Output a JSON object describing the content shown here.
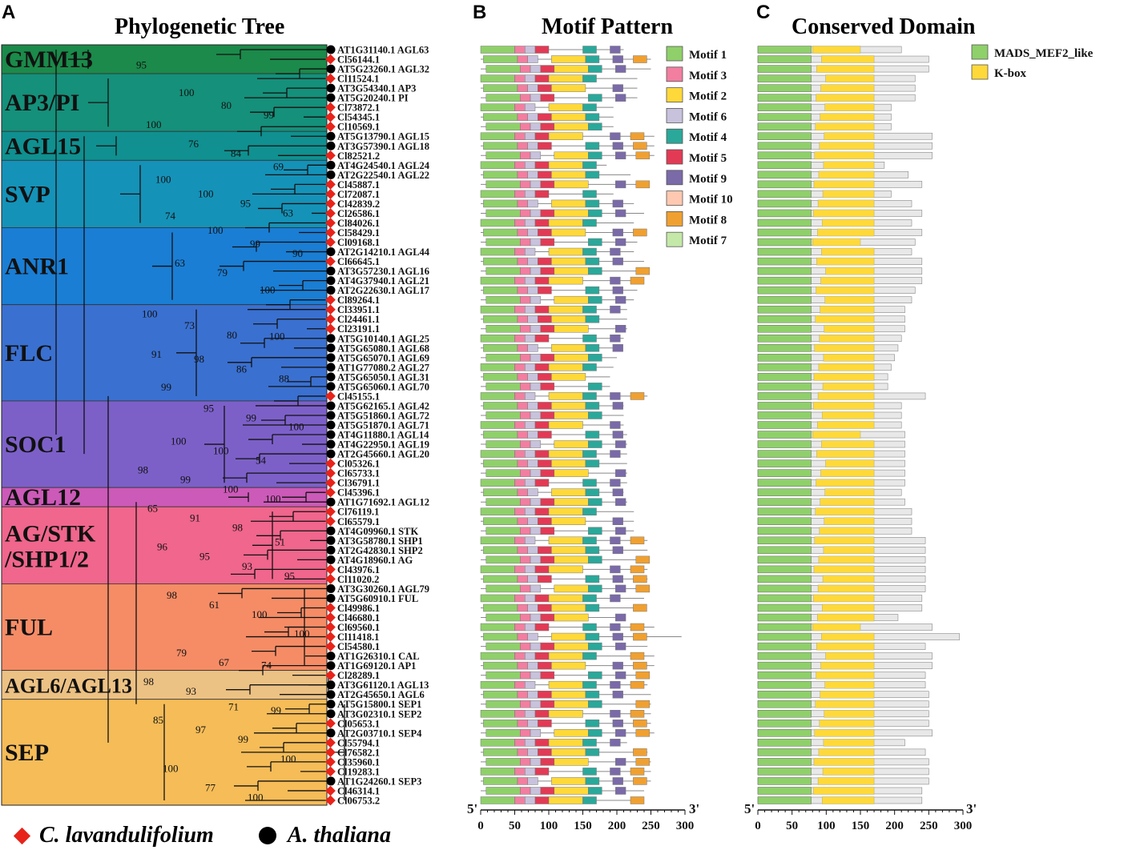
{
  "panels": {
    "a": {
      "letter": "A",
      "title": "Phylogenetic Tree"
    },
    "b": {
      "letter": "B",
      "title": "Motif Pattern"
    },
    "c": {
      "letter": "C",
      "title": "Conserved Domain"
    }
  },
  "colors": {
    "cl": "#e8231a",
    "at": "#000000",
    "motif1": "#8fd06a",
    "motif3": "#f27ea0",
    "motif2": "#ffd93a",
    "motif6": "#c8c2dc",
    "motif4": "#2aa89a",
    "motif5": "#e23a55",
    "motif9": "#7a6aa8",
    "motif10": "#ffc8b0",
    "motif8": "#f0a030",
    "motif7": "#c4e8a8",
    "mads": "#8fd06a",
    "kbox": "#ffd93a",
    "domain_bg": "#e8e8e8"
  },
  "legend_species": {
    "cl": "C. lavandulifolium",
    "at": "A. thaliana"
  },
  "clades": [
    {
      "name": "GMM13",
      "color": "#1b8a4a",
      "start": 0,
      "end": 3
    },
    {
      "name": "AP3/PI",
      "color": "#15907a",
      "start": 3,
      "end": 9
    },
    {
      "name": "AGL15",
      "color": "#109090",
      "start": 9,
      "end": 12
    },
    {
      "name": "SVP",
      "color": "#1592b8",
      "start": 12,
      "end": 19
    },
    {
      "name": "ANR1",
      "color": "#1a7ed4",
      "start": 19,
      "end": 27
    },
    {
      "name": "FLC",
      "color": "#3a70d0",
      "start": 27,
      "end": 37
    },
    {
      "name": "SOC1",
      "color": "#7c60c8",
      "start": 37,
      "end": 46
    },
    {
      "name": "AGL12",
      "color": "#cc5ab8",
      "start": 46,
      "end": 48
    },
    {
      "name": "AG/STK\n/SHP1/2",
      "color": "#f0668c",
      "start": 48,
      "end": 56
    },
    {
      "name": "FUL",
      "color": "#f58c66",
      "start": 56,
      "end": 65
    },
    {
      "name": "AGL6/AGL13",
      "color": "#ecc184",
      "start": 65,
      "end": 68
    },
    {
      "name": "SEP",
      "color": "#f5bc58",
      "start": 68,
      "end": 79
    }
  ],
  "genes": [
    {
      "id": "AT1G31140.1 AGL63",
      "sp": "at"
    },
    {
      "id": "Cl56144.1",
      "sp": "cl"
    },
    {
      "id": "AT5G23260.1 AGL32",
      "sp": "at"
    },
    {
      "id": "Cl11524.1",
      "sp": "cl"
    },
    {
      "id": "AT3G54340.1 AP3",
      "sp": "at"
    },
    {
      "id": "AT5G20240.1 PI",
      "sp": "at"
    },
    {
      "id": "Cl73872.1",
      "sp": "cl"
    },
    {
      "id": "Cl54345.1",
      "sp": "cl"
    },
    {
      "id": "Cl10569.1",
      "sp": "cl"
    },
    {
      "id": "AT5G13790.1 AGL15",
      "sp": "at"
    },
    {
      "id": "AT3G57390.1 AGL18",
      "sp": "at"
    },
    {
      "id": "Cl82521.2",
      "sp": "cl"
    },
    {
      "id": "AT4G24540.1 AGL24",
      "sp": "at"
    },
    {
      "id": "AT2G22540.1 AGL22",
      "sp": "at"
    },
    {
      "id": "Cl45887.1",
      "sp": "cl"
    },
    {
      "id": "Cl72087.1",
      "sp": "cl"
    },
    {
      "id": "Cl42839.2",
      "sp": "cl"
    },
    {
      "id": "Cl26586.1",
      "sp": "cl"
    },
    {
      "id": "Cl84026.1",
      "sp": "cl"
    },
    {
      "id": "Cl58429.1",
      "sp": "cl"
    },
    {
      "id": "Cl09168.1",
      "sp": "cl"
    },
    {
      "id": "AT2G14210.1 AGL44",
      "sp": "at"
    },
    {
      "id": "Cl66645.1",
      "sp": "cl"
    },
    {
      "id": "AT3G57230.1 AGL16",
      "sp": "at"
    },
    {
      "id": "AT4G37940.1 AGL21",
      "sp": "at"
    },
    {
      "id": "AT2G22630.1 AGL17",
      "sp": "at"
    },
    {
      "id": "Cl89264.1",
      "sp": "cl"
    },
    {
      "id": "Cl33951.1",
      "sp": "cl"
    },
    {
      "id": "Cl24461.1",
      "sp": "cl"
    },
    {
      "id": "Cl23191.1",
      "sp": "cl"
    },
    {
      "id": "AT5G10140.1 AGL25",
      "sp": "at"
    },
    {
      "id": "AT5G65080.1 AGL68",
      "sp": "at"
    },
    {
      "id": "AT5G65070.1 AGL69",
      "sp": "at"
    },
    {
      "id": "AT1G77080.2 AGL27",
      "sp": "at"
    },
    {
      "id": "AT5G65050.1 AGL31",
      "sp": "at"
    },
    {
      "id": "AT5G65060.1 AGL70",
      "sp": "at"
    },
    {
      "id": "Cl45155.1",
      "sp": "cl"
    },
    {
      "id": "AT5G62165.1 AGL42",
      "sp": "at"
    },
    {
      "id": "AT5G51860.1 AGL72",
      "sp": "at"
    },
    {
      "id": "AT5G51870.1 AGL71",
      "sp": "at"
    },
    {
      "id": "AT4G11880.1 AGL14",
      "sp": "at"
    },
    {
      "id": "AT4G22950.1 AGL19",
      "sp": "at"
    },
    {
      "id": "AT2G45660.1 AGL20",
      "sp": "at"
    },
    {
      "id": "Cl05326.1",
      "sp": "cl"
    },
    {
      "id": "Cl65733.1",
      "sp": "cl"
    },
    {
      "id": "Cl36791.1",
      "sp": "cl"
    },
    {
      "id": "Cl45396.1",
      "sp": "cl"
    },
    {
      "id": "AT1G71692.1 AGL12",
      "sp": "at"
    },
    {
      "id": "Cl76119.1",
      "sp": "cl"
    },
    {
      "id": "Cl65579.1",
      "sp": "cl"
    },
    {
      "id": "AT4G09960.1 STK",
      "sp": "at"
    },
    {
      "id": "AT3G58780.1 SHP1",
      "sp": "at"
    },
    {
      "id": "AT2G42830.1 SHP2",
      "sp": "at"
    },
    {
      "id": "AT4G18960.1 AG",
      "sp": "at"
    },
    {
      "id": "Cl43976.1",
      "sp": "cl"
    },
    {
      "id": "Cl11020.2",
      "sp": "cl"
    },
    {
      "id": "AT3G30260.1 AGL79",
      "sp": "at"
    },
    {
      "id": "AT5G60910.1 FUL",
      "sp": "at"
    },
    {
      "id": "Cl49986.1",
      "sp": "cl"
    },
    {
      "id": "Cl46680.1",
      "sp": "cl"
    },
    {
      "id": "Cl69560.1",
      "sp": "cl"
    },
    {
      "id": "Cl11418.1",
      "sp": "cl"
    },
    {
      "id": "Cl54580.1",
      "sp": "cl"
    },
    {
      "id": "AT1G26310.1 CAL",
      "sp": "at"
    },
    {
      "id": "AT1G69120.1 AP1",
      "sp": "at"
    },
    {
      "id": "Cl28289.1",
      "sp": "cl"
    },
    {
      "id": "AT3G61120.1 AGL13",
      "sp": "at"
    },
    {
      "id": "AT2G45650.1 AGL6",
      "sp": "at"
    },
    {
      "id": "AT5G15800.1 SEP1",
      "sp": "at"
    },
    {
      "id": "AT3G02310.1 SEP2",
      "sp": "at"
    },
    {
      "id": "Cl05653.1",
      "sp": "cl"
    },
    {
      "id": "AT2G03710.1 SEP4",
      "sp": "at"
    },
    {
      "id": "Cl55794.1",
      "sp": "cl"
    },
    {
      "id": "Cl76582.1",
      "sp": "cl"
    },
    {
      "id": "Cl35960.1",
      "sp": "cl"
    },
    {
      "id": "Cl19283.1",
      "sp": "cl"
    },
    {
      "id": "AT1G24260.1 SEP3",
      "sp": "at"
    },
    {
      "id": "Cl46314.1",
      "sp": "cl"
    },
    {
      "id": "Cl06753.2",
      "sp": "cl"
    }
  ],
  "bootstrap": [
    {
      "v": "95",
      "row": 1.6
    },
    {
      "v": "100",
      "row": 4.5
    },
    {
      "v": "80",
      "row": 5.8
    },
    {
      "v": "99",
      "row": 6.8
    },
    {
      "v": "100",
      "row": 7.8
    },
    {
      "v": "76",
      "row": 9.8
    },
    {
      "v": "84",
      "row": 10.8
    },
    {
      "v": "69",
      "row": 12.2
    },
    {
      "v": "100",
      "row": 13.5
    },
    {
      "v": "100",
      "row": 15.0
    },
    {
      "v": "95",
      "row": 16.0
    },
    {
      "v": "63",
      "row": 17.0
    },
    {
      "v": "74",
      "row": 17.3
    },
    {
      "v": "100",
      "row": 18.8
    },
    {
      "v": "99",
      "row": 20.2
    },
    {
      "v": "90",
      "row": 21.2
    },
    {
      "v": "63",
      "row": 22.2
    },
    {
      "v": "79",
      "row": 23.2
    },
    {
      "v": "100",
      "row": 25.0
    },
    {
      "v": "100",
      "row": 27.5
    },
    {
      "v": "73",
      "row": 28.7
    },
    {
      "v": "80",
      "row": 29.7
    },
    {
      "v": "100",
      "row": 29.8
    },
    {
      "v": "91",
      "row": 31.7
    },
    {
      "v": "98",
      "row": 32.2
    },
    {
      "v": "86",
      "row": 33.2
    },
    {
      "v": "88",
      "row": 34.2
    },
    {
      "v": "99",
      "row": 35.1
    },
    {
      "v": "95",
      "row": 37.3
    },
    {
      "v": "99",
      "row": 38.3
    },
    {
      "v": "100",
      "row": 39.2
    },
    {
      "v": "100",
      "row": 40.7
    },
    {
      "v": "100",
      "row": 41.7
    },
    {
      "v": "54",
      "row": 42.7
    },
    {
      "v": "98",
      "row": 43.7
    },
    {
      "v": "99",
      "row": 44.7
    },
    {
      "v": "100",
      "row": 45.7
    },
    {
      "v": "100",
      "row": 46.7
    },
    {
      "v": "65",
      "row": 47.7
    },
    {
      "v": "91",
      "row": 48.7
    },
    {
      "v": "98",
      "row": 49.7
    },
    {
      "v": "51",
      "row": 51.2
    },
    {
      "v": "96",
      "row": 51.7
    },
    {
      "v": "95",
      "row": 52.7
    },
    {
      "v": "93",
      "row": 53.7
    },
    {
      "v": "95",
      "row": 54.7
    },
    {
      "v": "98",
      "row": 56.7
    },
    {
      "v": "61",
      "row": 57.7
    },
    {
      "v": "100",
      "row": 58.7
    },
    {
      "v": "100",
      "row": 60.7
    },
    {
      "v": "79",
      "row": 62.7
    },
    {
      "v": "67",
      "row": 63.7
    },
    {
      "v": "74",
      "row": 64.0
    },
    {
      "v": "98",
      "row": 65.7
    },
    {
      "v": "93",
      "row": 66.7
    },
    {
      "v": "71",
      "row": 68.3
    },
    {
      "v": "99",
      "row": 68.7
    },
    {
      "v": "85",
      "row": 69.7
    },
    {
      "v": "97",
      "row": 70.7
    },
    {
      "v": "99",
      "row": 71.7
    },
    {
      "v": "100",
      "row": 73.7
    },
    {
      "v": "100",
      "row": 74.7
    },
    {
      "v": "77",
      "row": 76.7
    },
    {
      "v": "100",
      "row": 77.7
    }
  ],
  "motif_legend": [
    "Motif  1",
    "Motif  3",
    "Motif  2",
    "Motif  6",
    "Motif  4",
    "Motif  5",
    "Motif  9",
    "Motif  10",
    "Motif  8",
    "Motif  7"
  ],
  "motif_keys": [
    "motif1",
    "motif3",
    "motif2",
    "motif6",
    "motif4",
    "motif5",
    "motif9",
    "motif10",
    "motif8",
    "motif7"
  ],
  "domain_legend": [
    "MADS_MEF2_like",
    "K-box"
  ],
  "axis": {
    "motif": {
      "ticks": [
        "0",
        "50",
        "100",
        "150",
        "200",
        "250",
        "300"
      ],
      "five_prime": "5'",
      "three_prime": "3'",
      "max": 300
    },
    "domain": {
      "ticks": [
        "0",
        "50",
        "100",
        "150",
        "200",
        "250",
        "300"
      ],
      "five_prime": "5'",
      "three_prime": "3'",
      "max": 300
    }
  },
  "protein_lengths": [
    210,
    250,
    250,
    230,
    230,
    230,
    195,
    195,
    195,
    255,
    255,
    255,
    185,
    220,
    240,
    195,
    225,
    240,
    225,
    240,
    230,
    225,
    240,
    240,
    240,
    230,
    225,
    215,
    215,
    215,
    210,
    205,
    200,
    195,
    190,
    190,
    245,
    210,
    210,
    210,
    215,
    215,
    215,
    215,
    215,
    215,
    210,
    215,
    225,
    225,
    225,
    245,
    245,
    245,
    245,
    245,
    245,
    240,
    240,
    205,
    255,
    295,
    245,
    255,
    255,
    245,
    245,
    250,
    250,
    250,
    250,
    255,
    215,
    245,
    250,
    250,
    250,
    240,
    240
  ]
}
